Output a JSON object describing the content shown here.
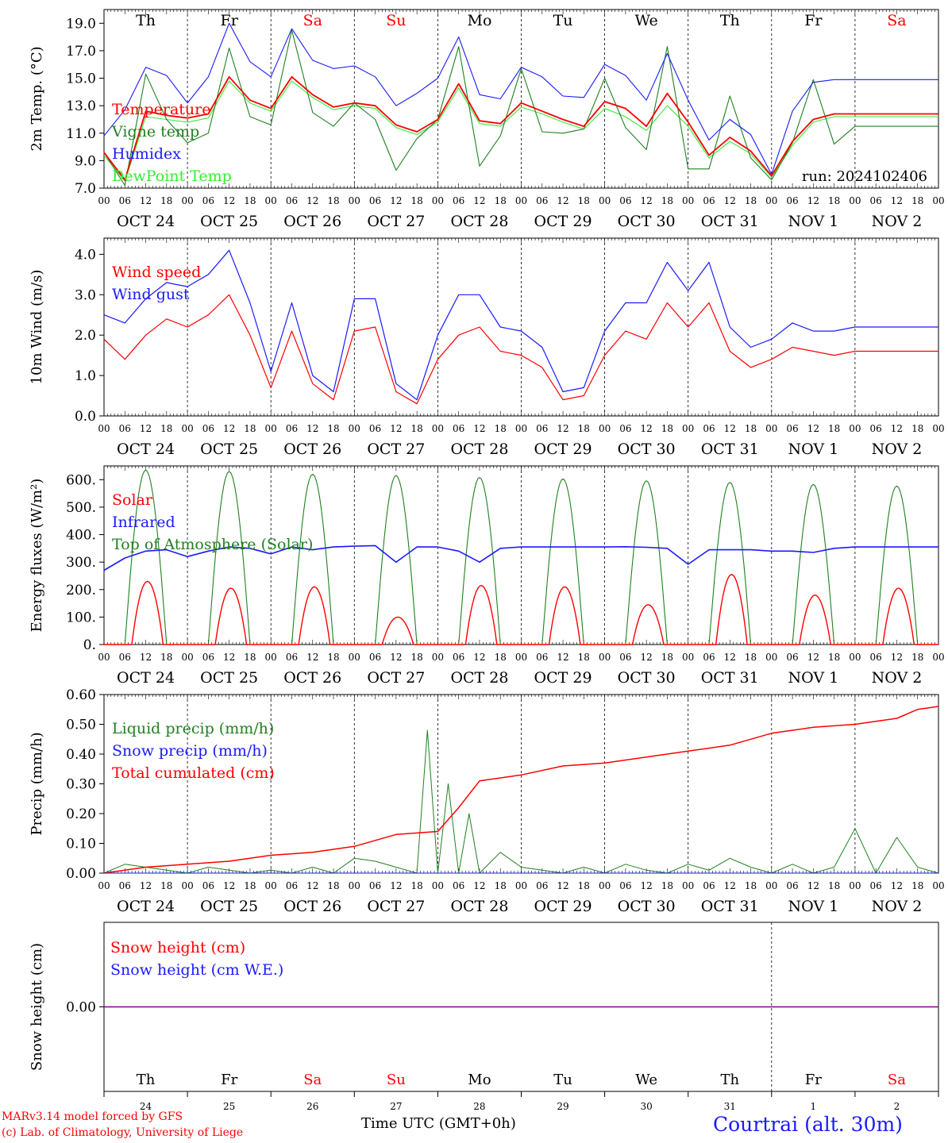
{
  "colors": {
    "red": "#ff0000",
    "green": "#208020",
    "blue": "#1a1aff",
    "lightgreen": "#33ee33",
    "snow_line": "#800080"
  },
  "days_top": [
    {
      "label": "Th",
      "weekend": false
    },
    {
      "label": "Fr",
      "weekend": false
    },
    {
      "label": "Sa",
      "weekend": true
    },
    {
      "label": "Su",
      "weekend": true
    },
    {
      "label": "Mo",
      "weekend": false
    },
    {
      "label": "Tu",
      "weekend": false
    },
    {
      "label": "We",
      "weekend": false
    },
    {
      "label": "Th",
      "weekend": false
    },
    {
      "label": "Fr",
      "weekend": false
    },
    {
      "label": "Sa",
      "weekend": true
    }
  ],
  "date_labels": [
    "OCT 24",
    "OCT 25",
    "OCT 26",
    "OCT 27",
    "OCT 28",
    "OCT 29",
    "OCT 30",
    "OCT 31",
    "NOV  1",
    "NOV  2"
  ],
  "hour_labels": [
    "00",
    "06",
    "12",
    "18"
  ],
  "day_numbers": [
    "24",
    "25",
    "26",
    "27",
    "28",
    "29",
    "30",
    "31",
    "1",
    "2"
  ],
  "run_label": "run: 2024102406",
  "footer": {
    "model": "MARv3.14 model forced by GFS",
    "lab": "(c) Lab. of Climatology, University of Liege",
    "time": "Time UTC (GMT+0h)",
    "site": "Courtrai (alt. 30m)"
  },
  "chart_data": [
    {
      "type": "line",
      "xlabel": "",
      "ylabel": "2m Temp. (°C)",
      "ylim": [
        7,
        20
      ],
      "yticks": [
        "7.0",
        "9.0",
        "11.0",
        "13.0",
        "15.0",
        "17.0",
        "19.0"
      ],
      "x_hours": [
        0,
        6,
        12,
        18,
        24,
        30,
        36,
        42,
        48,
        54,
        60,
        66,
        72,
        78,
        84,
        90,
        96,
        102,
        108,
        114,
        120,
        126,
        132,
        138,
        144,
        150,
        156,
        162,
        168,
        174,
        180,
        186,
        192,
        198,
        204,
        210,
        216,
        222,
        228,
        234,
        240
      ],
      "series": [
        {
          "name": "Temperature",
          "color": "#ff0000",
          "values": [
            9.6,
            7.6,
            12.6,
            12.3,
            12.1,
            12.4,
            15.1,
            13.4,
            12.8,
            15.1,
            13.8,
            12.9,
            13.2,
            13.0,
            11.6,
            11.1,
            12.0,
            14.6,
            11.9,
            11.7,
            13.2,
            12.6,
            12.0,
            11.5,
            13.3,
            12.8,
            11.5,
            13.9,
            11.8,
            9.4,
            10.7,
            9.7,
            7.9,
            10.4,
            12.0,
            12.4,
            12.4,
            12.4,
            12.4,
            12.4,
            12.4
          ]
        },
        {
          "name": "Vigne temp",
          "color": "#208020",
          "values": [
            9.6,
            7.2,
            15.3,
            12.0,
            10.3,
            11.0,
            17.2,
            12.2,
            11.6,
            18.5,
            12.5,
            11.5,
            13.2,
            12.0,
            8.3,
            10.6,
            12.0,
            17.3,
            8.6,
            10.8,
            15.7,
            11.1,
            11.0,
            11.3,
            15.0,
            11.4,
            9.8,
            17.3,
            8.4,
            8.4,
            13.7,
            9.2,
            7.6,
            10.3,
            14.9,
            10.2,
            11.5,
            11.5,
            11.5,
            11.5,
            11.5
          ]
        },
        {
          "name": "Humidex",
          "color": "#1a1aff",
          "values": [
            10.8,
            12.7,
            15.8,
            15.2,
            13.2,
            15.1,
            19.0,
            16.2,
            15.1,
            18.6,
            16.3,
            15.7,
            15.9,
            15.1,
            13.0,
            13.9,
            15.0,
            18.0,
            13.8,
            13.5,
            15.8,
            15.1,
            13.7,
            13.6,
            16.0,
            15.2,
            13.4,
            16.8,
            13.4,
            10.5,
            12.0,
            10.9,
            8.0,
            12.6,
            14.7,
            14.9,
            14.9,
            14.9,
            14.9,
            14.9,
            14.9
          ]
        },
        {
          "name": "DewPoint Temp",
          "color": "#33ee33",
          "values": [
            9.4,
            7.5,
            12.2,
            12.0,
            11.8,
            12.1,
            14.8,
            13.2,
            12.6,
            14.8,
            13.6,
            12.7,
            13.0,
            12.8,
            11.4,
            10.9,
            11.8,
            14.3,
            11.7,
            11.5,
            12.9,
            12.4,
            11.8,
            11.3,
            12.8,
            12.2,
            11.2,
            13.0,
            11.5,
            9.2,
            10.4,
            9.5,
            7.8,
            10.1,
            11.8,
            12.2,
            12.2,
            12.2,
            12.2,
            12.2,
            12.2
          ]
        }
      ]
    },
    {
      "type": "line",
      "xlabel": "",
      "ylabel": "10m Wind (m/s)",
      "ylim": [
        0,
        4.4
      ],
      "yticks": [
        "0.0",
        "1.0",
        "2.0",
        "3.0",
        "4.0"
      ],
      "x_hours": [
        0,
        6,
        12,
        18,
        24,
        30,
        36,
        42,
        48,
        54,
        60,
        66,
        72,
        78,
        84,
        90,
        96,
        102,
        108,
        114,
        120,
        126,
        132,
        138,
        144,
        150,
        156,
        162,
        168,
        174,
        180,
        186,
        192,
        198,
        204,
        210,
        216,
        222,
        228,
        234,
        240
      ],
      "series": [
        {
          "name": "Wind speed",
          "color": "#ff0000",
          "values": [
            1.9,
            1.4,
            2.0,
            2.4,
            2.2,
            2.5,
            3.0,
            2.0,
            0.7,
            2.1,
            0.8,
            0.4,
            2.1,
            2.2,
            0.6,
            0.3,
            1.4,
            2.0,
            2.2,
            1.6,
            1.5,
            1.2,
            0.4,
            0.5,
            1.5,
            2.1,
            1.9,
            2.8,
            2.2,
            2.8,
            1.6,
            1.2,
            1.4,
            1.7,
            1.6,
            1.5,
            1.6,
            1.6,
            1.6,
            1.6,
            1.6
          ]
        },
        {
          "name": "Wind gust",
          "color": "#1a1aff",
          "values": [
            2.5,
            2.3,
            2.9,
            3.3,
            3.2,
            3.5,
            4.1,
            2.8,
            1.1,
            2.8,
            1.0,
            0.6,
            2.9,
            2.9,
            0.8,
            0.4,
            2.0,
            3.0,
            3.0,
            2.2,
            2.1,
            1.7,
            0.6,
            0.7,
            2.1,
            2.8,
            2.8,
            3.8,
            3.1,
            3.8,
            2.2,
            1.7,
            1.9,
            2.3,
            2.1,
            2.1,
            2.2,
            2.2,
            2.2,
            2.2,
            2.2
          ]
        }
      ]
    },
    {
      "type": "line",
      "xlabel": "",
      "ylabel": "Energy fluxes (W/m²)",
      "ylim": [
        0,
        650
      ],
      "yticks": [
        "0.",
        "100.",
        "200.",
        "300.",
        "400.",
        "500.",
        "600."
      ],
      "peaks": {
        "toa": [
          635,
          630,
          620,
          615,
          608,
          603,
          596,
          590,
          583,
          577
        ],
        "solar": [
          230,
          205,
          210,
          100,
          215,
          210,
          145,
          255,
          180,
          205
        ]
      },
      "infrared": {
        "x_hours": [
          0,
          6,
          12,
          18,
          24,
          30,
          36,
          42,
          48,
          54,
          60,
          66,
          72,
          78,
          84,
          90,
          96,
          102,
          108,
          114,
          120,
          126,
          132,
          138,
          144,
          150,
          156,
          162,
          168,
          174,
          180,
          186,
          192,
          198,
          204,
          210,
          216,
          222,
          228,
          234,
          240
        ],
        "values": [
          270,
          315,
          340,
          345,
          320,
          340,
          355,
          350,
          330,
          355,
          345,
          355,
          358,
          360,
          300,
          355,
          355,
          340,
          300,
          350,
          355,
          355,
          355,
          355,
          355,
          356,
          354,
          350,
          292,
          345,
          345,
          345,
          340,
          340,
          335,
          350,
          355,
          355,
          355,
          355,
          355
        ]
      },
      "series": [
        {
          "name": "Solar",
          "color": "#ff0000"
        },
        {
          "name": "Infrared",
          "color": "#1a1aff"
        },
        {
          "name": "Top of Atmosphere (Solar)",
          "color": "#208020"
        }
      ]
    },
    {
      "type": "line",
      "xlabel": "",
      "ylabel": "Precip (mm/h)",
      "ylim": [
        0,
        0.6
      ],
      "yticks": [
        "0.00",
        "0.10",
        "0.20",
        "0.30",
        "0.40",
        "0.50",
        "0.60"
      ],
      "liquid": {
        "x_hours": [
          0,
          6,
          12,
          18,
          24,
          30,
          36,
          42,
          48,
          54,
          60,
          66,
          72,
          78,
          84,
          90,
          93,
          96,
          99,
          102,
          105,
          108,
          114,
          120,
          126,
          132,
          138,
          144,
          150,
          156,
          162,
          168,
          174,
          180,
          186,
          192,
          198,
          204,
          210,
          216,
          222,
          228,
          234,
          240
        ],
        "values": [
          0.0,
          0.03,
          0.02,
          0.01,
          0.0,
          0.02,
          0.01,
          0.0,
          0.01,
          0.0,
          0.02,
          0.0,
          0.05,
          0.04,
          0.02,
          0.0,
          0.48,
          0.0,
          0.3,
          0.0,
          0.2,
          0.0,
          0.07,
          0.02,
          0.01,
          0.0,
          0.02,
          0.0,
          0.03,
          0.01,
          0.0,
          0.03,
          0.01,
          0.05,
          0.02,
          0.0,
          0.03,
          0.0,
          0.02,
          0.15,
          0.0,
          0.12,
          0.02,
          0.0
        ]
      },
      "cumulated": {
        "x_hours": [
          0,
          12,
          24,
          36,
          48,
          60,
          72,
          84,
          96,
          102,
          108,
          120,
          132,
          144,
          156,
          168,
          180,
          192,
          204,
          216,
          228,
          234,
          240
        ],
        "values": [
          0.0,
          0.02,
          0.03,
          0.04,
          0.06,
          0.07,
          0.09,
          0.13,
          0.14,
          0.22,
          0.31,
          0.33,
          0.36,
          0.37,
          0.39,
          0.41,
          0.43,
          0.47,
          0.49,
          0.5,
          0.52,
          0.55,
          0.56
        ]
      },
      "series": [
        {
          "name": "Liquid precip (mm/h)",
          "color": "#208020"
        },
        {
          "name": "Snow precip (mm/h)",
          "color": "#1a1aff"
        },
        {
          "name": "Total cumulated (cm)",
          "color": "#ff0000"
        }
      ]
    },
    {
      "type": "line",
      "xlabel": "Time UTC (GMT+0h)",
      "ylabel": "Snow height (cm)",
      "ylim": [
        -1,
        1
      ],
      "yticks": [
        "0.00"
      ],
      "series": [
        {
          "name": "Snow height (cm)",
          "color": "#ff0000",
          "values": [
            0.0,
            0.0
          ]
        },
        {
          "name": "Snow height (cm W.E.)",
          "color": "#1a1aff",
          "values": [
            0.0,
            0.0
          ]
        }
      ]
    }
  ]
}
